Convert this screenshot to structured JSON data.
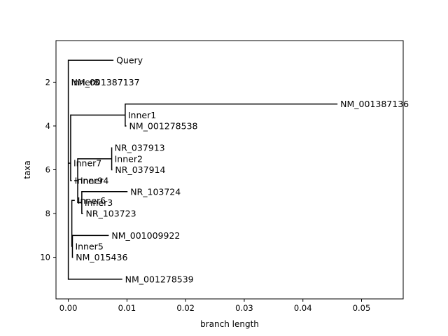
{
  "chart_data": {
    "type": "phylogenetic-tree",
    "xlabel": "branch length",
    "ylabel": "taxa",
    "xlim": [
      -0.0021,
      0.0571
    ],
    "ylim": [
      11.9,
      0.1
    ],
    "x_ticks": [
      0.0,
      0.01,
      0.02,
      0.03,
      0.04,
      0.05
    ],
    "x_tick_labels": [
      "0.00",
      "0.01",
      "0.02",
      "0.03",
      "0.04",
      "0.05"
    ],
    "y_ticks": [
      2,
      4,
      6,
      8,
      10
    ],
    "y_tick_labels": [
      "2",
      "4",
      "6",
      "8",
      "10"
    ],
    "line_color": "#000000",
    "nodes": [
      {
        "id": "Inner8",
        "label": "Inner8",
        "x": 0.0,
        "y": 2,
        "parent": null,
        "kind": "inner"
      },
      {
        "id": "Query",
        "label": "Query",
        "x": 0.0077,
        "y": 1,
        "parent": "Inner8",
        "kind": "leaf"
      },
      {
        "id": "NM_001387137",
        "label": "NM_001387137",
        "x": 0.0,
        "y": 2,
        "parent": "Inner8",
        "kind": "leaf"
      },
      {
        "id": "Inner7",
        "label": "Inner7",
        "x": 0.0004,
        "y": 5.7,
        "parent": "Inner8",
        "kind": "inner"
      },
      {
        "id": "NM_001278539",
        "label": "NM_001278539",
        "x": 0.0092,
        "y": 11,
        "parent": "Inner8",
        "kind": "leaf"
      },
      {
        "id": "Inner1",
        "label": "Inner1",
        "x": 0.0097,
        "y": 3.5,
        "parent": "Inner7",
        "kind": "inner"
      },
      {
        "id": "NM_001387136",
        "label": "NM_001387136",
        "x": 0.0459,
        "y": 3,
        "parent": "Inner1",
        "kind": "leaf"
      },
      {
        "id": "NM_001278538",
        "label": "NM_001278538",
        "x": 0.0099,
        "y": 4,
        "parent": "Inner1",
        "kind": "leaf"
      },
      {
        "id": "Inner9",
        "label": "Inner9",
        "x": 0.0006,
        "y": 6.5,
        "parent": "Inner7",
        "kind": "inner"
      },
      {
        "id": "Inner6",
        "label": "Inner6",
        "x": 0.0011,
        "y": 7.4,
        "parent": "Inner9",
        "kind": "inner"
      },
      {
        "id": "Inner4",
        "label": "Inner4",
        "x": 0.0016,
        "y": 6.5,
        "parent": "Inner6",
        "kind": "inner"
      },
      {
        "id": "Inner2",
        "label": "Inner2",
        "x": 0.0074,
        "y": 5.5,
        "parent": "Inner4",
        "kind": "inner"
      },
      {
        "id": "NR_037913",
        "label": "NR_037913",
        "x": 0.0074,
        "y": 5,
        "parent": "Inner2",
        "kind": "leaf"
      },
      {
        "id": "NR_037914",
        "label": "NR_037914",
        "x": 0.0075,
        "y": 6,
        "parent": "Inner2",
        "kind": "leaf"
      },
      {
        "id": "Inner3",
        "label": "Inner3",
        "x": 0.0023,
        "y": 7.5,
        "parent": "Inner4",
        "kind": "inner"
      },
      {
        "id": "NR_103724",
        "label": "NR_103724",
        "x": 0.0101,
        "y": 7,
        "parent": "Inner3",
        "kind": "leaf"
      },
      {
        "id": "NR_103723",
        "label": "NR_103723",
        "x": 0.0025,
        "y": 8,
        "parent": "Inner3",
        "kind": "leaf"
      },
      {
        "id": "Inner5",
        "label": "Inner5",
        "x": 0.0007,
        "y": 9.5,
        "parent": "Inner9",
        "kind": "inner"
      },
      {
        "id": "NM_001009922",
        "label": "NM_001009922",
        "x": 0.0069,
        "y": 9,
        "parent": "Inner5",
        "kind": "leaf"
      },
      {
        "id": "NM_015436",
        "label": "NM_015436",
        "x": 0.0008,
        "y": 10,
        "parent": "Inner5",
        "kind": "leaf"
      }
    ]
  }
}
